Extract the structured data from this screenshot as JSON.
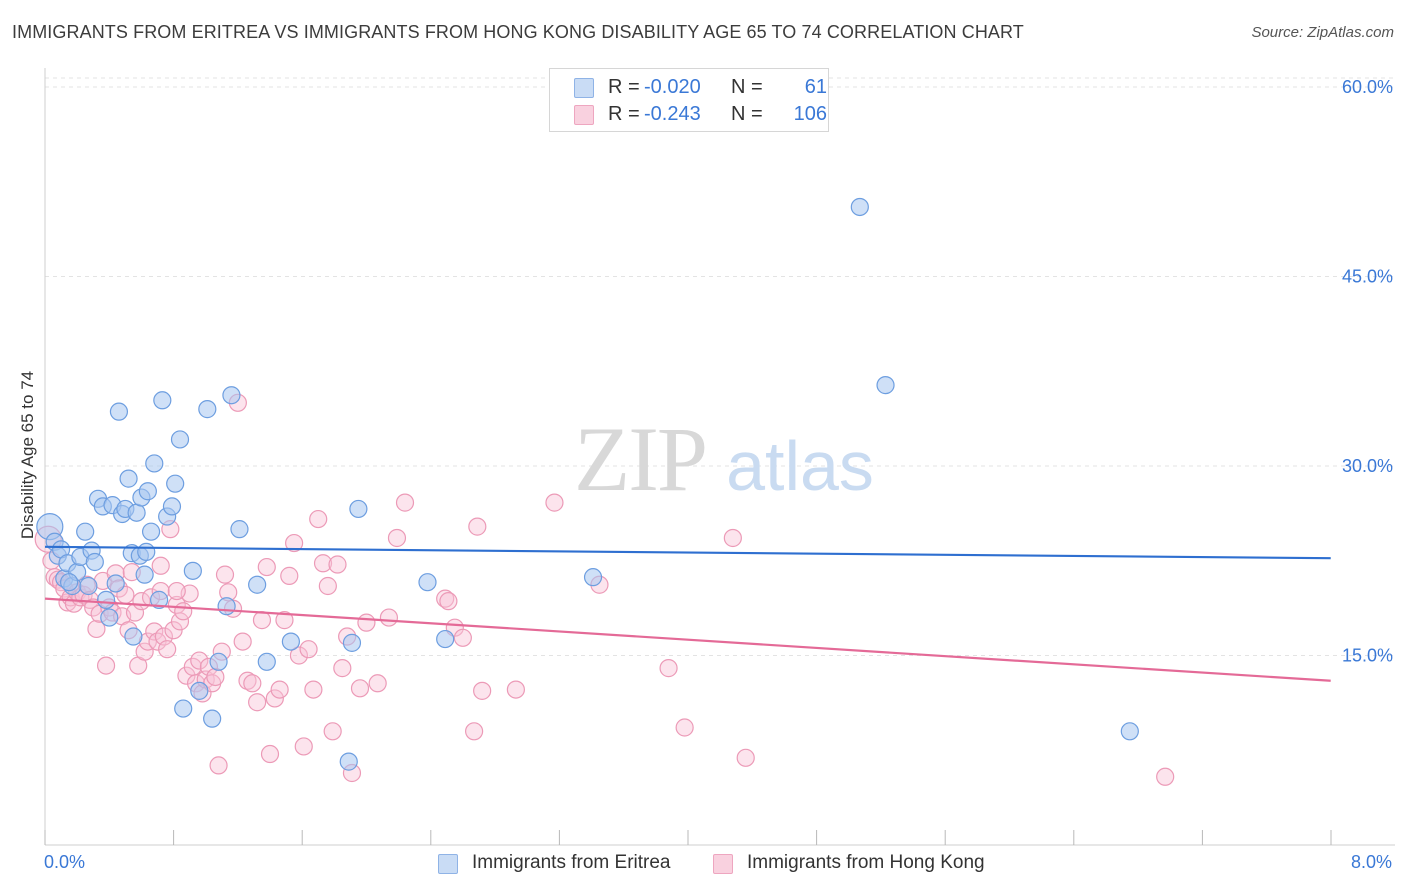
{
  "title": "IMMIGRANTS FROM ERITREA VS IMMIGRANTS FROM HONG KONG DISABILITY AGE 65 TO 74 CORRELATION CHART",
  "source": "Source: ZipAtlas.com",
  "watermark": {
    "zip": "ZIP",
    "atlas": "atlas"
  },
  "legend": {
    "rows": [
      {
        "r_label": "R =",
        "r_value": "-0.020",
        "n_label": "N =",
        "n_value": "61",
        "color": "#a7c6f0"
      },
      {
        "r_label": "R =",
        "r_value": "-0.243",
        "n_label": "N =",
        "n_value": "106",
        "color": "#f4b3c9"
      }
    ]
  },
  "colors": {
    "blue": "#4a86d8",
    "pink": "#e8779e",
    "axis_label": "#3a78d6"
  },
  "chart_data": {
    "type": "scatter",
    "title": "IMMIGRANTS FROM ERITREA VS IMMIGRANTS FROM HONG KONG DISABILITY AGE 65 TO 74 CORRELATION CHART",
    "xlabel": "",
    "ylabel": "Disability Age 65 to 74",
    "xlim": [
      0,
      8.4
    ],
    "ylim": [
      0,
      61.5
    ],
    "x_tick_labels": [
      "0.0%",
      "8.0%"
    ],
    "y_ticks": [
      15,
      30,
      45,
      60
    ],
    "y_tick_labels": [
      "15.0%",
      "30.0%",
      "45.0%",
      "60.0%"
    ],
    "grid": true,
    "legend_position": "bottom-center",
    "series": [
      {
        "name": "Immigrants from Eritrea",
        "color": "#4a86d8",
        "trend": {
          "x": [
            0,
            8.0
          ],
          "y": [
            23.6,
            22.7
          ]
        },
        "points": [
          [
            0.03,
            25.2
          ],
          [
            0.06,
            24.0
          ],
          [
            0.08,
            22.9
          ],
          [
            0.1,
            23.4
          ],
          [
            0.12,
            21.1
          ],
          [
            0.14,
            22.3
          ],
          [
            0.17,
            20.5
          ],
          [
            0.2,
            21.6
          ],
          [
            0.22,
            22.8
          ],
          [
            0.25,
            24.8
          ],
          [
            0.27,
            20.5
          ],
          [
            0.29,
            23.3
          ],
          [
            0.31,
            22.4
          ],
          [
            0.33,
            27.4
          ],
          [
            0.36,
            26.8
          ],
          [
            0.38,
            19.4
          ],
          [
            0.4,
            18.0
          ],
          [
            0.42,
            26.9
          ],
          [
            0.44,
            20.7
          ],
          [
            0.46,
            34.3
          ],
          [
            0.48,
            26.2
          ],
          [
            0.5,
            26.6
          ],
          [
            0.52,
            29.0
          ],
          [
            0.54,
            23.1
          ],
          [
            0.55,
            16.5
          ],
          [
            0.57,
            26.3
          ],
          [
            0.59,
            22.9
          ],
          [
            0.6,
            27.5
          ],
          [
            0.62,
            21.4
          ],
          [
            0.63,
            23.2
          ],
          [
            0.64,
            28.0
          ],
          [
            0.66,
            24.8
          ],
          [
            0.68,
            30.2
          ],
          [
            0.71,
            19.4
          ],
          [
            0.73,
            35.2
          ],
          [
            0.76,
            26.0
          ],
          [
            0.79,
            26.8
          ],
          [
            0.81,
            28.6
          ],
          [
            0.84,
            32.1
          ],
          [
            0.86,
            10.8
          ],
          [
            0.92,
            21.7
          ],
          [
            0.96,
            12.2
          ],
          [
            1.01,
            34.5
          ],
          [
            1.04,
            10.0
          ],
          [
            1.08,
            14.5
          ],
          [
            1.13,
            18.9
          ],
          [
            1.16,
            35.6
          ],
          [
            1.21,
            25.0
          ],
          [
            1.32,
            20.6
          ],
          [
            1.38,
            14.5
          ],
          [
            1.53,
            16.1
          ],
          [
            1.89,
            6.6
          ],
          [
            1.91,
            16.0
          ],
          [
            1.95,
            26.6
          ],
          [
            2.38,
            20.8
          ],
          [
            2.49,
            16.3
          ],
          [
            3.41,
            21.2
          ],
          [
            5.07,
            50.5
          ],
          [
            5.23,
            36.4
          ],
          [
            6.75,
            9.0
          ],
          [
            0.15,
            20.8
          ]
        ]
      },
      {
        "name": "Immigrants from Hong Kong",
        "color": "#e8779e",
        "trend": {
          "x": [
            0,
            8.0
          ],
          "y": [
            19.5,
            13.0
          ]
        },
        "points": [
          [
            0.02,
            24.2
          ],
          [
            0.04,
            22.5
          ],
          [
            0.06,
            21.2
          ],
          [
            0.08,
            21.0
          ],
          [
            0.1,
            20.8
          ],
          [
            0.12,
            20.3
          ],
          [
            0.14,
            19.2
          ],
          [
            0.16,
            19.6
          ],
          [
            0.18,
            19.1
          ],
          [
            0.2,
            20.0
          ],
          [
            0.22,
            19.6
          ],
          [
            0.24,
            19.8
          ],
          [
            0.26,
            20.6
          ],
          [
            0.28,
            19.4
          ],
          [
            0.3,
            18.8
          ],
          [
            0.32,
            17.1
          ],
          [
            0.34,
            18.3
          ],
          [
            0.36,
            20.9
          ],
          [
            0.38,
            14.2
          ],
          [
            0.4,
            18.8
          ],
          [
            0.42,
            18.4
          ],
          [
            0.44,
            21.5
          ],
          [
            0.46,
            20.3
          ],
          [
            0.48,
            18.1
          ],
          [
            0.5,
            19.8
          ],
          [
            0.52,
            17.0
          ],
          [
            0.54,
            21.6
          ],
          [
            0.56,
            18.4
          ],
          [
            0.58,
            14.2
          ],
          [
            0.6,
            19.3
          ],
          [
            0.62,
            15.3
          ],
          [
            0.64,
            16.1
          ],
          [
            0.66,
            19.6
          ],
          [
            0.68,
            16.9
          ],
          [
            0.7,
            16.1
          ],
          [
            0.72,
            20.1
          ],
          [
            0.74,
            16.5
          ],
          [
            0.76,
            15.5
          ],
          [
            0.78,
            25.0
          ],
          [
            0.8,
            17.0
          ],
          [
            0.82,
            19.0
          ],
          [
            0.84,
            17.7
          ],
          [
            0.86,
            18.5
          ],
          [
            0.88,
            13.4
          ],
          [
            0.9,
            19.9
          ],
          [
            0.92,
            14.1
          ],
          [
            0.94,
            12.8
          ],
          [
            0.96,
            14.6
          ],
          [
            0.98,
            12.0
          ],
          [
            1.0,
            13.1
          ],
          [
            1.02,
            14.1
          ],
          [
            1.04,
            12.8
          ],
          [
            1.06,
            13.3
          ],
          [
            1.08,
            6.3
          ],
          [
            1.1,
            15.3
          ],
          [
            1.12,
            21.4
          ],
          [
            1.14,
            20.0
          ],
          [
            1.17,
            18.7
          ],
          [
            1.2,
            35.0
          ],
          [
            1.23,
            16.1
          ],
          [
            1.26,
            13.0
          ],
          [
            1.29,
            12.8
          ],
          [
            1.32,
            11.3
          ],
          [
            1.35,
            17.8
          ],
          [
            1.38,
            22.0
          ],
          [
            1.4,
            7.2
          ],
          [
            1.43,
            11.6
          ],
          [
            1.46,
            12.3
          ],
          [
            1.49,
            17.8
          ],
          [
            1.52,
            21.3
          ],
          [
            1.55,
            23.9
          ],
          [
            1.58,
            15.0
          ],
          [
            1.61,
            7.8
          ],
          [
            1.64,
            15.5
          ],
          [
            1.67,
            12.3
          ],
          [
            1.7,
            25.8
          ],
          [
            1.73,
            22.3
          ],
          [
            1.76,
            20.5
          ],
          [
            1.79,
            9.0
          ],
          [
            1.82,
            22.2
          ],
          [
            1.85,
            14.0
          ],
          [
            1.88,
            16.5
          ],
          [
            1.91,
            5.7
          ],
          [
            1.96,
            12.4
          ],
          [
            2.0,
            17.6
          ],
          [
            2.07,
            12.8
          ],
          [
            2.14,
            18.0
          ],
          [
            2.19,
            24.3
          ],
          [
            2.24,
            27.1
          ],
          [
            2.49,
            19.5
          ],
          [
            2.51,
            19.3
          ],
          [
            2.55,
            17.2
          ],
          [
            2.6,
            16.4
          ],
          [
            2.67,
            9.0
          ],
          [
            2.69,
            25.2
          ],
          [
            2.72,
            12.2
          ],
          [
            2.93,
            12.3
          ],
          [
            3.17,
            27.1
          ],
          [
            3.45,
            20.6
          ],
          [
            3.88,
            14.0
          ],
          [
            3.98,
            9.3
          ],
          [
            4.28,
            24.3
          ],
          [
            4.36,
            6.9
          ],
          [
            6.97,
            5.4
          ],
          [
            0.72,
            22.1
          ],
          [
            0.82,
            20.1
          ]
        ]
      }
    ]
  }
}
